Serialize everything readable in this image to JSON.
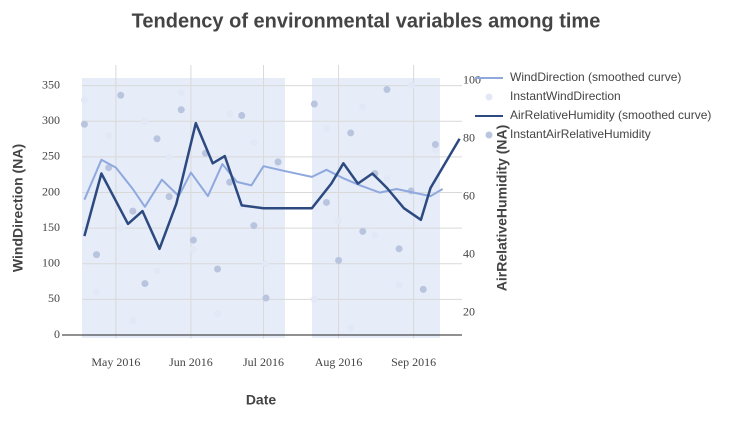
{
  "chart_data": {
    "type": "line",
    "title": "Tendency of environmental variables among time",
    "x_label": "Date",
    "y_label": "WindDirection (NA)",
    "y2_label": "AirRelativeHumidity (NA)",
    "xlim": [
      "2016-04-17",
      "2016-09-21"
    ],
    "xticks": [
      {
        "value": "2016-05-01",
        "label": "May 2016"
      },
      {
        "value": "2016-06-01",
        "label": "Jun 2016"
      },
      {
        "value": "2016-07-01",
        "label": "Jul 2016"
      },
      {
        "value": "2016-08-01",
        "label": "Aug 2016"
      },
      {
        "value": "2016-09-01",
        "label": "Sep 2016"
      }
    ],
    "ylim": [
      -5,
      365
    ],
    "yticks": [
      0,
      50,
      100,
      150,
      200,
      250,
      300,
      350
    ],
    "y2lim": [
      11,
      102
    ],
    "y2ticks": [
      20,
      40,
      60,
      80,
      100
    ],
    "grid": true,
    "series": [
      {
        "name": "WindDirection (smoothed curve)",
        "kind": "line",
        "color": "#8fa9de",
        "x": [
          "2016-04-18",
          "2016-04-25",
          "2016-05-01",
          "2016-05-08",
          "2016-05-13",
          "2016-05-20",
          "2016-05-27",
          "2016-06-01",
          "2016-06-08",
          "2016-06-14",
          "2016-06-20",
          "2016-06-26",
          "2016-07-01",
          "2016-07-10",
          "2016-07-21",
          "2016-07-27",
          "2016-08-03",
          "2016-08-10",
          "2016-08-18",
          "2016-08-25",
          "2016-09-01",
          "2016-09-08",
          "2016-09-13"
        ],
        "values": [
          190,
          246,
          235,
          205,
          180,
          218,
          195,
          228,
          195,
          240,
          215,
          210,
          237,
          230,
          222,
          232,
          220,
          210,
          200,
          205,
          200,
          195,
          205
        ]
      },
      {
        "name": "InstantWindDirection",
        "kind": "scatter",
        "color": "#e2e8f6",
        "x": [
          "2016-04-18",
          "2016-04-23",
          "2016-04-28",
          "2016-05-03",
          "2016-05-08",
          "2016-05-13",
          "2016-05-18",
          "2016-05-23",
          "2016-05-28",
          "2016-06-02",
          "2016-06-07",
          "2016-06-12",
          "2016-06-17",
          "2016-06-22",
          "2016-06-27",
          "2016-07-02",
          "2016-07-07",
          "2016-07-22",
          "2016-07-27",
          "2016-08-01",
          "2016-08-06",
          "2016-08-11",
          "2016-08-16",
          "2016-08-21",
          "2016-08-26",
          "2016-08-31",
          "2016-09-05",
          "2016-09-10"
        ],
        "values": [
          330,
          60,
          280,
          150,
          20,
          300,
          90,
          250,
          340,
          120,
          200,
          30,
          310,
          180,
          270,
          100,
          240,
          50,
          290,
          160,
          10,
          320,
          140,
          220,
          70,
          350,
          190,
          260
        ]
      },
      {
        "name": "AirRelativeHumidity (smoothed curve)",
        "kind": "line",
        "axis": "y2",
        "color": "#2c4a80",
        "x": [
          "2016-04-18",
          "2016-04-25",
          "2016-05-06",
          "2016-05-12",
          "2016-05-19",
          "2016-05-26",
          "2016-06-03",
          "2016-06-10",
          "2016-06-15",
          "2016-06-22",
          "2016-07-01",
          "2016-07-21",
          "2016-07-29",
          "2016-08-03",
          "2016-08-09",
          "2016-08-15",
          "2016-08-21",
          "2016-08-28",
          "2016-09-04",
          "2016-09-08",
          "2016-09-20"
        ],
        "values": [
          46.4,
          68,
          50.6,
          55,
          42,
          57.6,
          85.4,
          71.5,
          74,
          57,
          56,
          56,
          64.5,
          71.5,
          64.5,
          68,
          63,
          56,
          52,
          63,
          80
        ]
      },
      {
        "name": "InstantAirRelativeHumidity",
        "kind": "scatter",
        "axis": "y2",
        "color": "#b9c5df",
        "x": [
          "2016-04-18",
          "2016-04-23",
          "2016-04-28",
          "2016-05-03",
          "2016-05-08",
          "2016-05-13",
          "2016-05-18",
          "2016-05-23",
          "2016-05-28",
          "2016-06-02",
          "2016-06-07",
          "2016-06-12",
          "2016-06-17",
          "2016-06-22",
          "2016-06-27",
          "2016-07-02",
          "2016-07-07",
          "2016-07-22",
          "2016-07-27",
          "2016-08-01",
          "2016-08-06",
          "2016-08-11",
          "2016-08-16",
          "2016-08-21",
          "2016-08-26",
          "2016-08-31",
          "2016-09-05",
          "2016-09-10"
        ],
        "values": [
          85,
          40,
          70,
          95,
          55,
          30,
          80,
          60,
          90,
          45,
          75,
          35,
          65,
          88,
          50,
          25,
          72,
          92,
          58,
          38,
          82,
          48,
          68,
          97,
          42,
          62,
          28,
          78
        ]
      }
    ]
  }
}
